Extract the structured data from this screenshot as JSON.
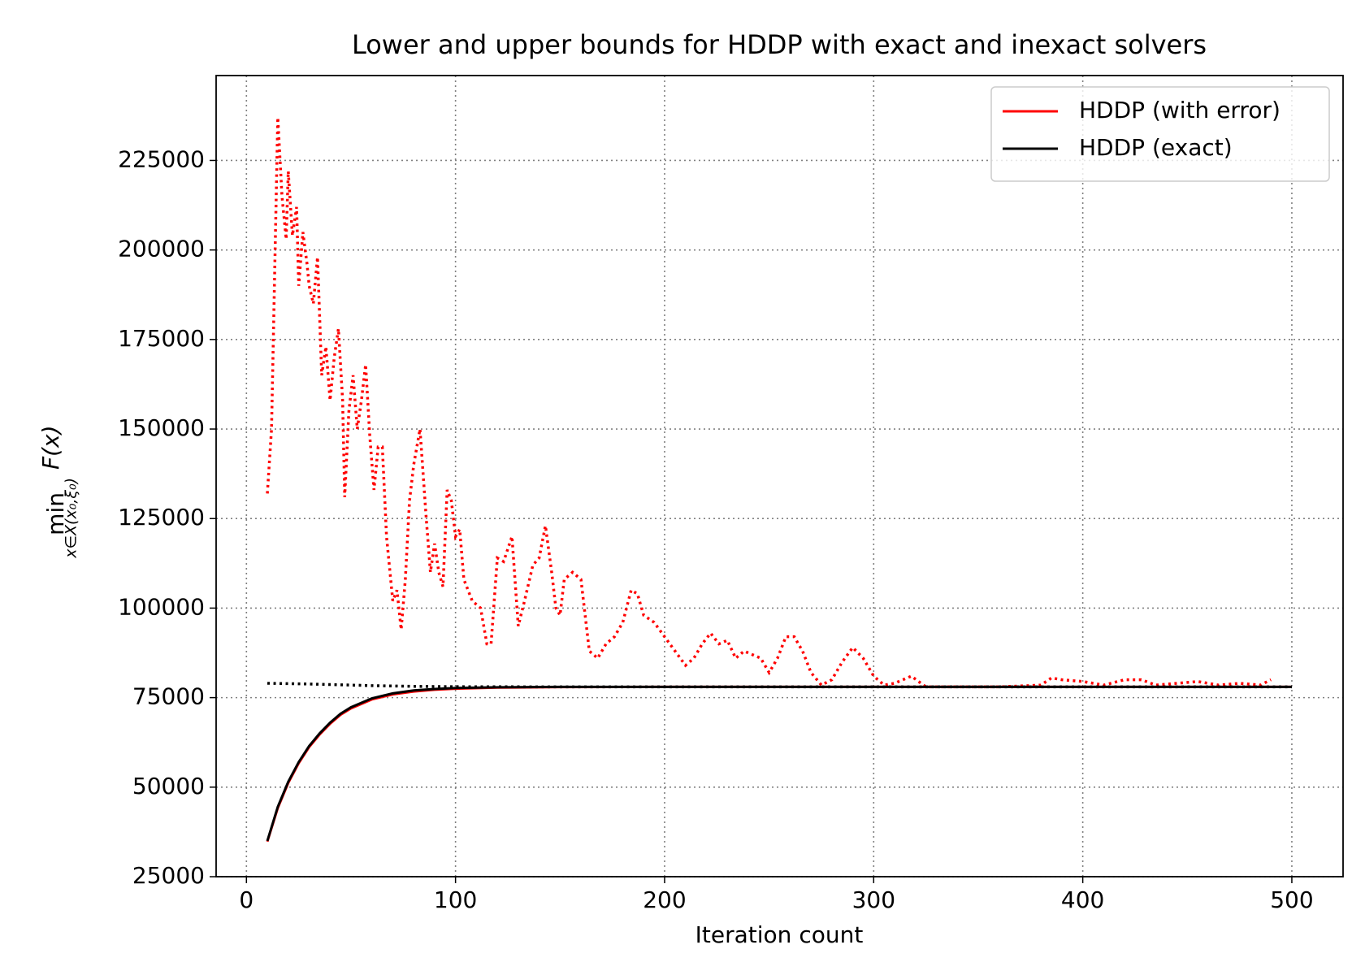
{
  "chart_data": {
    "type": "line",
    "title": "Lower and upper bounds for HDDP with exact and inexact solvers",
    "x_label": "Iteration count",
    "y_label": {
      "main": "min",
      "subscript": "x∈X(x₀,ξ₀)",
      "func": "F(x)"
    },
    "xlim": [
      -14.5,
      524.5
    ],
    "ylim": [
      25000,
      248700
    ],
    "xticks": [
      0,
      100,
      200,
      300,
      400,
      500
    ],
    "yticks": [
      25000,
      50000,
      75000,
      100000,
      125000,
      150000,
      175000,
      200000,
      225000
    ],
    "grid": true,
    "legend": "upper right",
    "series": [
      {
        "color": "#ff0000",
        "linestyle": "dotted",
        "x": [
          10,
          12,
          15,
          17,
          19,
          20,
          22,
          24,
          25,
          27,
          29,
          30,
          32,
          34,
          36,
          38,
          40,
          42,
          44,
          46,
          47,
          49,
          51,
          53,
          55,
          57,
          59,
          61,
          63,
          65,
          67,
          70,
          72,
          74,
          76,
          78,
          80,
          83,
          86,
          88,
          90,
          92,
          94,
          96,
          98,
          100,
          102,
          104,
          108,
          112,
          115,
          117,
          120,
          123,
          127,
          130,
          133,
          137,
          140,
          143,
          146,
          148,
          150,
          152,
          156,
          160,
          164,
          168,
          172,
          176,
          180,
          184,
          187,
          190,
          195,
          200,
          205,
          210,
          214,
          218,
          222,
          226,
          230,
          234,
          238,
          242,
          246,
          250,
          254,
          258,
          262,
          266,
          270,
          275,
          280,
          285,
          290,
          295,
          300,
          305,
          310,
          318,
          325,
          340,
          360,
          380,
          385,
          390,
          400,
          410,
          420,
          428,
          435,
          445,
          455,
          465,
          475,
          485,
          490
        ],
        "values": [
          132000,
          150000,
          237000,
          215000,
          203000,
          222000,
          204000,
          212000,
          190000,
          205000,
          196000,
          190000,
          185000,
          198000,
          165000,
          173000,
          158000,
          170000,
          178000,
          158000,
          131000,
          155000,
          165000,
          150000,
          158000,
          168000,
          148000,
          133000,
          145000,
          145000,
          120000,
          102000,
          105000,
          94000,
          108000,
          130000,
          140000,
          150000,
          125000,
          110000,
          118000,
          110000,
          106000,
          133000,
          130000,
          120000,
          122000,
          108000,
          102000,
          100000,
          90000,
          90000,
          114000,
          113000,
          120000,
          95000,
          102000,
          112000,
          114000,
          123000,
          110000,
          100000,
          98000,
          108000,
          110000,
          108000,
          88000,
          86000,
          90000,
          92000,
          96000,
          105000,
          104000,
          98000,
          96000,
          92000,
          88000,
          84000,
          86000,
          90000,
          93000,
          90000,
          91000,
          86000,
          88000,
          87000,
          86000,
          82000,
          86000,
          92000,
          92000,
          88000,
          82000,
          78500,
          80000,
          85000,
          89000,
          86000,
          81000,
          78500,
          79000,
          81000,
          78000,
          78000,
          78000,
          78500,
          80500,
          80000,
          79500,
          78500,
          80000,
          80000,
          78500,
          79000,
          79500,
          78500,
          79000,
          78500,
          80000
        ]
      },
      {
        "name": "HDDP (with error)",
        "color": "#ff0000",
        "linestyle": "solid",
        "x": [
          10,
          15,
          20,
          25,
          30,
          35,
          40,
          45,
          50,
          60,
          70,
          80,
          90,
          100,
          120,
          150,
          200,
          300,
          400,
          500
        ],
        "values": [
          34800,
          44200,
          51200,
          56700,
          61200,
          64700,
          67700,
          70200,
          72000,
          74500,
          75900,
          76700,
          77200,
          77500,
          77800,
          77950,
          78000,
          78000,
          78000,
          78000
        ]
      },
      {
        "color": "#000000",
        "linestyle": "dotted",
        "x": [
          10,
          20,
          30,
          40,
          50,
          60,
          70,
          80,
          90,
          100,
          150,
          200,
          300,
          400,
          500
        ],
        "values": [
          79000,
          78900,
          78800,
          78650,
          78500,
          78350,
          78250,
          78150,
          78100,
          78050,
          78000,
          78000,
          78000,
          78000,
          78000
        ]
      },
      {
        "name": "HDDP (exact)",
        "color": "#000000",
        "linestyle": "solid",
        "x": [
          10,
          15,
          20,
          25,
          30,
          35,
          40,
          45,
          50,
          60,
          70,
          80,
          90,
          100,
          120,
          150,
          200,
          300,
          400,
          500
        ],
        "values": [
          35000,
          44500,
          51500,
          57000,
          61500,
          65000,
          68000,
          70500,
          72300,
          74800,
          76200,
          77000,
          77400,
          77700,
          77900,
          78000,
          78000,
          78000,
          78000,
          78000
        ]
      }
    ]
  }
}
